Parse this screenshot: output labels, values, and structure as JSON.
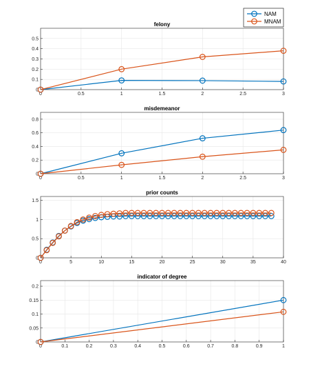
{
  "colors": {
    "NAM": "#0072BD",
    "MNAM": "#D95319",
    "grid": "#e6e6e6",
    "axis": "#262626"
  },
  "legend": {
    "placement": "top-right",
    "entries": [
      "NAM",
      "MNAM"
    ]
  },
  "chart_data": [
    {
      "type": "line",
      "title": "felony",
      "grid": true,
      "xlim": [
        0,
        3
      ],
      "ylim": [
        0,
        0.6
      ],
      "xticks": [
        0,
        0.5,
        1,
        1.5,
        2,
        2.5,
        3
      ],
      "xtick_labels": [
        "0",
        "0.5",
        "1",
        "1.5",
        "2",
        "2.5",
        "3"
      ],
      "yticks": [
        0,
        0.1,
        0.2,
        0.3,
        0.4,
        0.5
      ],
      "ytick_labels": [
        "0",
        "0.1",
        "0.2",
        "0.3",
        "0.4",
        "0.5"
      ],
      "x": [
        0,
        1,
        2,
        3
      ],
      "series": [
        {
          "name": "NAM",
          "values": [
            0,
            0.09,
            0.088,
            0.08
          ]
        },
        {
          "name": "MNAM",
          "values": [
            0,
            0.2,
            0.32,
            0.38
          ]
        }
      ]
    },
    {
      "type": "line",
      "title": "misdemeanor",
      "grid": true,
      "xlim": [
        0,
        3
      ],
      "ylim": [
        0,
        0.9
      ],
      "xticks": [
        0,
        0.5,
        1,
        1.5,
        2,
        2.5,
        3
      ],
      "xtick_labels": [
        "0",
        "0.5",
        "1",
        "1.5",
        "2",
        "2.5",
        "3"
      ],
      "yticks": [
        0,
        0.2,
        0.4,
        0.6,
        0.8
      ],
      "ytick_labels": [
        "0",
        "0.2",
        "0.4",
        "0.6",
        "0.8"
      ],
      "x": [
        0,
        1,
        2,
        3
      ],
      "series": [
        {
          "name": "NAM",
          "values": [
            0,
            0.3,
            0.52,
            0.64
          ]
        },
        {
          "name": "MNAM",
          "values": [
            0,
            0.13,
            0.25,
            0.35
          ]
        }
      ]
    },
    {
      "type": "line",
      "title": "prior counts",
      "grid": true,
      "xlim": [
        0,
        40
      ],
      "ylim": [
        0,
        1.6
      ],
      "xticks": [
        0,
        5,
        10,
        15,
        20,
        25,
        30,
        35,
        40
      ],
      "xtick_labels": [
        "0",
        "5",
        "10",
        "15",
        "20",
        "25",
        "30",
        "35",
        "40"
      ],
      "yticks": [
        0,
        0.5,
        1,
        1.5
      ],
      "ytick_labels": [
        "0",
        "0.5",
        "1",
        "1.5"
      ],
      "x": [
        0,
        1,
        2,
        3,
        4,
        5,
        6,
        7,
        8,
        9,
        10,
        11,
        12,
        13,
        14,
        15,
        16,
        17,
        18,
        19,
        20,
        21,
        22,
        23,
        24,
        25,
        26,
        27,
        28,
        29,
        30,
        31,
        32,
        33,
        34,
        35,
        36,
        37,
        38
      ],
      "series": [
        {
          "name": "NAM",
          "values": [
            0,
            0.21,
            0.4,
            0.57,
            0.71,
            0.82,
            0.91,
            0.97,
            1.01,
            1.04,
            1.06,
            1.07,
            1.08,
            1.08,
            1.09,
            1.09,
            1.09,
            1.09,
            1.09,
            1.09,
            1.09,
            1.09,
            1.09,
            1.09,
            1.09,
            1.09,
            1.09,
            1.09,
            1.09,
            1.09,
            1.09,
            1.09,
            1.09,
            1.09,
            1.09,
            1.09,
            1.09,
            1.09,
            1.09
          ]
        },
        {
          "name": "MNAM",
          "values": [
            0,
            0.2,
            0.39,
            0.56,
            0.71,
            0.83,
            0.93,
            1.0,
            1.05,
            1.09,
            1.12,
            1.14,
            1.15,
            1.16,
            1.17,
            1.17,
            1.17,
            1.17,
            1.17,
            1.17,
            1.17,
            1.17,
            1.17,
            1.17,
            1.17,
            1.17,
            1.17,
            1.17,
            1.17,
            1.17,
            1.17,
            1.17,
            1.17,
            1.17,
            1.17,
            1.17,
            1.17,
            1.17,
            1.17
          ]
        }
      ]
    },
    {
      "type": "line",
      "title": "indicator of degree",
      "grid": true,
      "xlim": [
        0,
        1
      ],
      "ylim": [
        0,
        0.22
      ],
      "xticks": [
        0,
        0.1,
        0.2,
        0.3,
        0.4,
        0.5,
        0.6,
        0.7,
        0.8,
        0.9,
        1
      ],
      "xtick_labels": [
        "0",
        "0.1",
        "0.2",
        "0.3",
        "0.4",
        "0.5",
        "0.6",
        "0.7",
        "0.8",
        "0.9",
        "1"
      ],
      "yticks": [
        0,
        0.05,
        0.1,
        0.15,
        0.2
      ],
      "ytick_labels": [
        "0",
        "0.05",
        "0.1",
        "0.15",
        "0.2"
      ],
      "x": [
        0,
        1
      ],
      "series": [
        {
          "name": "NAM",
          "values": [
            0,
            0.15
          ]
        },
        {
          "name": "MNAM",
          "values": [
            0,
            0.108
          ]
        }
      ]
    }
  ]
}
